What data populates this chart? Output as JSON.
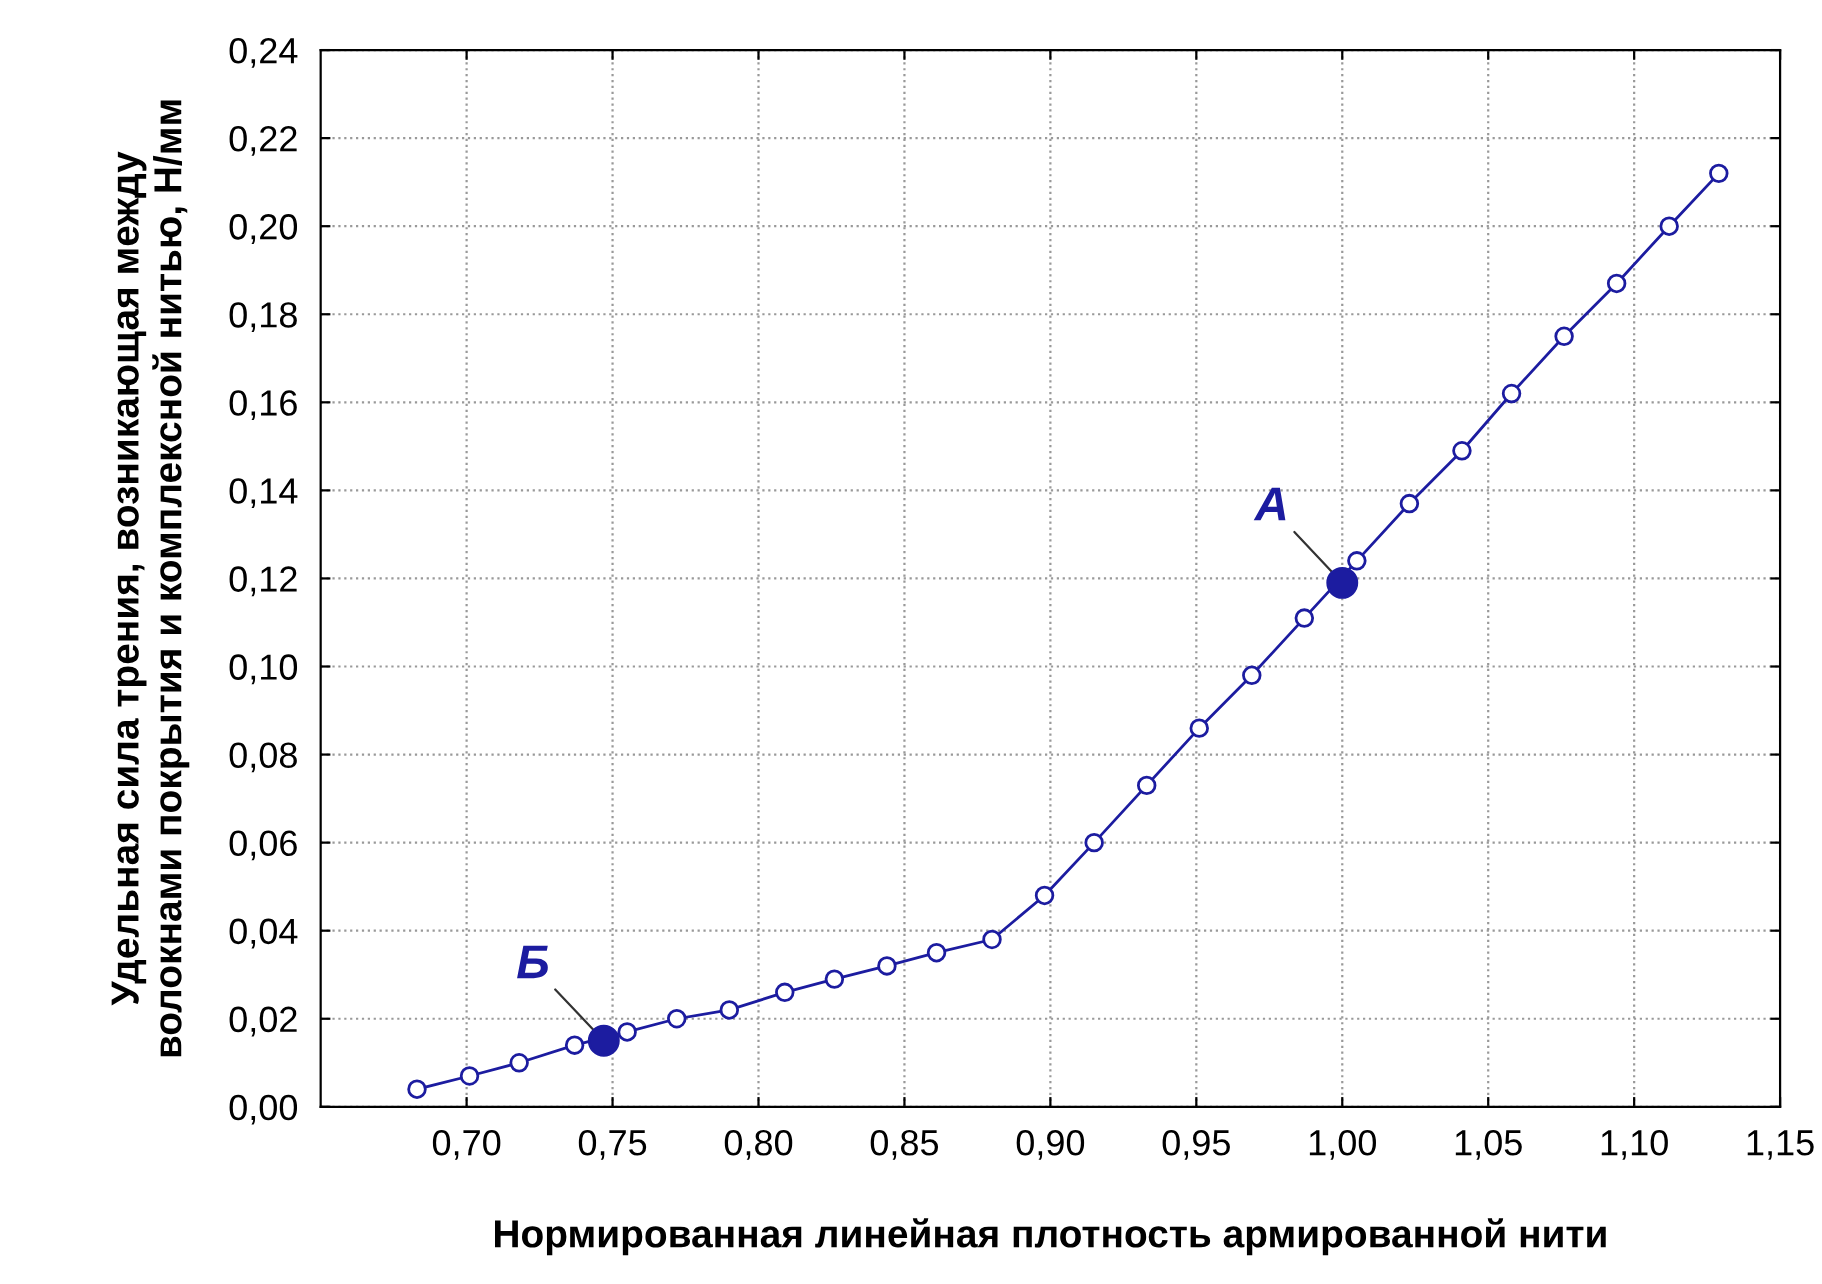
{
  "chart_data": {
    "type": "line",
    "xlabel": "Нормированная линейная плотность армированной нити",
    "ylabel": "Удельная сила трения, возникающая между\nволокнами покрытия и комплексной нитью, Н/мм",
    "xlim": [
      0.65,
      1.15
    ],
    "ylim": [
      0,
      0.24
    ],
    "xticks": [
      {
        "value": 0.7,
        "label": "0,70"
      },
      {
        "value": 0.75,
        "label": "0,75"
      },
      {
        "value": 0.8,
        "label": "0,80"
      },
      {
        "value": 0.85,
        "label": "0,85"
      },
      {
        "value": 0.9,
        "label": "0,90"
      },
      {
        "value": 0.95,
        "label": "0,95"
      },
      {
        "value": 1.0,
        "label": "1,00"
      },
      {
        "value": 1.05,
        "label": "1,05"
      },
      {
        "value": 1.1,
        "label": "1,10"
      },
      {
        "value": 1.15,
        "label": "1,15"
      }
    ],
    "yticks": [
      {
        "value": 0,
        "label": "0,00"
      },
      {
        "value": 0.02,
        "label": "0,02"
      },
      {
        "value": 0.04,
        "label": "0,04"
      },
      {
        "value": 0.06,
        "label": "0,06"
      },
      {
        "value": 0.08,
        "label": "0,08"
      },
      {
        "value": 0.1,
        "label": "0,10"
      },
      {
        "value": 0.12,
        "label": "0,12"
      },
      {
        "value": 0.14,
        "label": "0,14"
      },
      {
        "value": 0.16,
        "label": "0,16"
      },
      {
        "value": 0.18,
        "label": "0,18"
      },
      {
        "value": 0.2,
        "label": "0,20"
      },
      {
        "value": 0.22,
        "label": "0,22"
      },
      {
        "value": 0.24,
        "label": "0,24"
      }
    ],
    "grid": true,
    "marker": "circle",
    "line_style": "solid",
    "series": [
      {
        "color": "#1c1ca0",
        "x": [
          0.683,
          0.701,
          0.718,
          0.737,
          0.755,
          0.772,
          0.79,
          0.809,
          0.826,
          0.844,
          0.861,
          0.88,
          0.898,
          0.915,
          0.933,
          0.951,
          0.969,
          0.987,
          1.005,
          1.023,
          1.041,
          1.058,
          1.076,
          1.094,
          1.112,
          1.129
        ],
        "values": [
          0.004,
          0.007,
          0.01,
          0.014,
          0.017,
          0.02,
          0.022,
          0.026,
          0.029,
          0.032,
          0.035,
          0.038,
          0.048,
          0.06,
          0.073,
          0.086,
          0.098,
          0.111,
          0.124,
          0.137,
          0.149,
          0.162,
          0.175,
          0.187,
          0.2,
          0.212
        ]
      },
      {
        "type": "scatter",
        "color": "#1c1ca0",
        "x": [
          1.0,
          0.747
        ],
        "values": [
          0.119,
          0.015
        ]
      }
    ],
    "annotations": [
      {
        "text": "А",
        "x": 1.0,
        "y": 0.119
      },
      {
        "text": "Б",
        "x": 0.747,
        "y": 0.015
      }
    ]
  }
}
